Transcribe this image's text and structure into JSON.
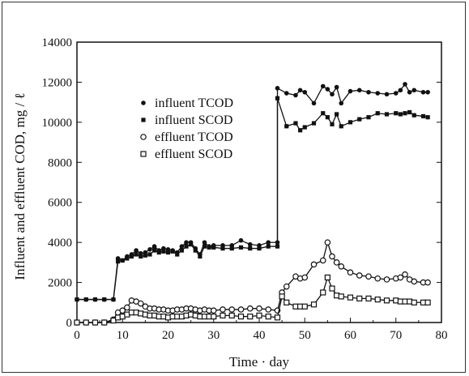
{
  "chart_data": {
    "type": "line",
    "title": "",
    "xlabel": "Time · day",
    "ylabel": "Influent and effluent COD, mg / ℓ",
    "xlim": [
      0,
      80
    ],
    "ylim": [
      0,
      14000
    ],
    "xticks": [
      0,
      10,
      20,
      30,
      40,
      50,
      60,
      70,
      80
    ],
    "yticks": [
      0,
      2000,
      4000,
      6000,
      8000,
      10000,
      12000,
      14000
    ],
    "grid": false,
    "legend_position": "upper-left",
    "series": [
      {
        "name": "influent TCOD",
        "marker": "filled-circle",
        "x": [
          0,
          2,
          4,
          6,
          8,
          9,
          10,
          11,
          12,
          13,
          14,
          15,
          16,
          17,
          18,
          19,
          20,
          21,
          22,
          23,
          24,
          25,
          26,
          27,
          28,
          29,
          30,
          32,
          34,
          36,
          38,
          40,
          42,
          44,
          44,
          46,
          48,
          49,
          50,
          52,
          54,
          55,
          56,
          57,
          58,
          60,
          62,
          64,
          66,
          68,
          70,
          71,
          72,
          73,
          74,
          76,
          77
        ],
        "values": [
          1150,
          1150,
          1150,
          1150,
          1150,
          3200,
          3100,
          3300,
          3400,
          3600,
          3450,
          3500,
          3650,
          3800,
          3600,
          3700,
          3650,
          3600,
          3500,
          3800,
          4000,
          4000,
          3700,
          3400,
          4000,
          3800,
          3850,
          3850,
          3850,
          4100,
          3900,
          3850,
          4000,
          4000,
          11700,
          11450,
          11350,
          11600,
          11500,
          10950,
          11800,
          11650,
          11400,
          11750,
          10950,
          11550,
          11600,
          11500,
          11450,
          11400,
          11450,
          11600,
          11900,
          11500,
          11600,
          11500,
          11500
        ]
      },
      {
        "name": "influent SCOD",
        "marker": "filled-square",
        "x": [
          0,
          2,
          4,
          6,
          8,
          9,
          10,
          11,
          12,
          13,
          14,
          15,
          16,
          17,
          18,
          19,
          20,
          21,
          22,
          23,
          24,
          25,
          26,
          27,
          28,
          29,
          30,
          32,
          34,
          36,
          38,
          40,
          42,
          44,
          44,
          46,
          48,
          49,
          50,
          52,
          54,
          55,
          56,
          57,
          58,
          60,
          62,
          64,
          66,
          68,
          70,
          71,
          72,
          73,
          74,
          76,
          77
        ],
        "values": [
          1150,
          1150,
          1150,
          1150,
          1150,
          3050,
          3100,
          3200,
          3300,
          3400,
          3300,
          3350,
          3400,
          3600,
          3500,
          3550,
          3500,
          3550,
          3400,
          3600,
          3800,
          3900,
          3600,
          3300,
          3800,
          3750,
          3750,
          3700,
          3700,
          3750,
          3700,
          3700,
          3800,
          3800,
          11200,
          9800,
          9950,
          9600,
          9750,
          9950,
          10450,
          10250,
          9900,
          10400,
          9800,
          10000,
          10150,
          10250,
          10450,
          10400,
          10450,
          10400,
          10450,
          10500,
          10350,
          10300,
          10250
        ]
      },
      {
        "name": "effluent TCOD",
        "marker": "open-circle",
        "x": [
          0,
          2,
          4,
          6,
          8,
          9,
          10,
          11,
          12,
          13,
          14,
          15,
          16,
          17,
          18,
          19,
          20,
          21,
          22,
          23,
          24,
          25,
          26,
          27,
          28,
          29,
          30,
          32,
          34,
          36,
          38,
          40,
          42,
          44,
          45,
          46,
          48,
          49,
          50,
          52,
          54,
          55,
          56,
          57,
          58,
          60,
          62,
          64,
          66,
          68,
          70,
          71,
          72,
          73,
          74,
          76,
          77
        ],
        "values": [
          0,
          0,
          0,
          0,
          150,
          500,
          600,
          750,
          1100,
          1050,
          950,
          800,
          700,
          700,
          650,
          650,
          600,
          600,
          650,
          650,
          700,
          700,
          650,
          600,
          650,
          600,
          600,
          650,
          650,
          650,
          700,
          700,
          650,
          600,
          1500,
          1800,
          2300,
          2200,
          2250,
          2900,
          3100,
          4000,
          3300,
          3000,
          2800,
          2500,
          2350,
          2300,
          2200,
          2150,
          2200,
          2250,
          2400,
          2150,
          2050,
          2000,
          2000
        ]
      },
      {
        "name": "effluent SCOD",
        "marker": "open-square",
        "x": [
          0,
          2,
          4,
          6,
          8,
          9,
          10,
          11,
          12,
          13,
          14,
          15,
          16,
          17,
          18,
          19,
          20,
          21,
          22,
          23,
          24,
          25,
          26,
          27,
          28,
          29,
          30,
          32,
          34,
          36,
          38,
          40,
          42,
          44,
          45,
          46,
          48,
          49,
          50,
          52,
          54,
          55,
          56,
          57,
          58,
          60,
          62,
          64,
          66,
          68,
          70,
          71,
          72,
          73,
          74,
          76,
          77
        ],
        "values": [
          0,
          0,
          0,
          0,
          100,
          250,
          300,
          400,
          500,
          500,
          450,
          400,
          350,
          350,
          300,
          300,
          250,
          300,
          300,
          300,
          350,
          400,
          350,
          300,
          300,
          300,
          300,
          350,
          350,
          300,
          300,
          350,
          300,
          250,
          1300,
          1000,
          800,
          800,
          800,
          900,
          1500,
          2250,
          1700,
          1350,
          1300,
          1250,
          1200,
          1200,
          1150,
          1100,
          1100,
          1050,
          1050,
          1050,
          1000,
          1000,
          1000
        ]
      }
    ]
  }
}
